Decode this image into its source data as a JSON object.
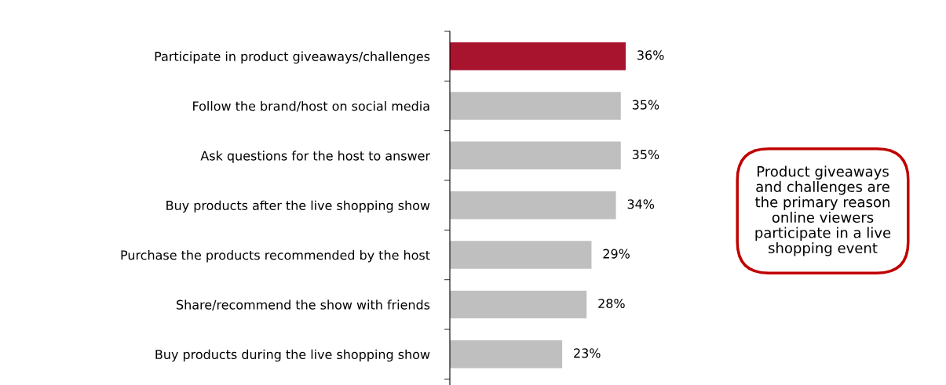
{
  "chart_data": {
    "type": "bar",
    "orientation": "horizontal",
    "data_labels": true,
    "grid": false,
    "legend": false,
    "categories": [
      "Participate in product giveaways/challenges",
      "Follow the brand/host on social media",
      "Ask questions for the host to answer",
      "Buy products after the live shopping show",
      "Purchase the products recommended by the host",
      "Share/recommend the show with friends",
      "Buy products during the live shopping show"
    ],
    "values": [
      36,
      35,
      35,
      34,
      29,
      28,
      23
    ],
    "value_labels": [
      "36%",
      "35%",
      "35%",
      "34%",
      "29%",
      "28%",
      "23%"
    ],
    "colors": [
      "#a8142e",
      "#bfbfbf",
      "#bfbfbf",
      "#bfbfbf",
      "#bfbfbf",
      "#bfbfbf",
      "#bfbfbf"
    ],
    "annotations": [
      "Product giveaways\nand challenges are\nthe primary reason\nonline viewers\nparticipate in a live\nshopping event"
    ]
  }
}
